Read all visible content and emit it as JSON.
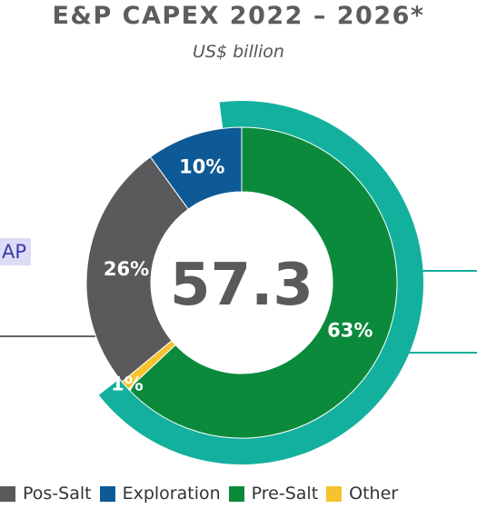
{
  "header": {
    "title": "E&P CAPEX 2022 – 2026*",
    "subtitle": "US$ billion"
  },
  "side_tag": {
    "label": "AP"
  },
  "chart_data": {
    "type": "pie",
    "total_label": "57.3",
    "categories": [
      "Pos-Salt",
      "Exploration",
      "Pre-Salt",
      "Other"
    ],
    "values": [
      26,
      10,
      63,
      1
    ],
    "value_labels": [
      "26%",
      "10%",
      "63%",
      "1%"
    ],
    "colors": [
      "#5a5a5c",
      "#0e5a96",
      "#0b8a3c",
      "#f6c230"
    ],
    "highlight_color": "#14b09e",
    "legend_position": "bottom"
  },
  "legend": {
    "items": [
      {
        "label": "Pos-Salt",
        "color": "#5a5a5c"
      },
      {
        "label": "Exploration",
        "color": "#0e5a96"
      },
      {
        "label": "Pre-Salt",
        "color": "#0b8a3c"
      },
      {
        "label": "Other",
        "color": "#f6c230"
      }
    ]
  }
}
